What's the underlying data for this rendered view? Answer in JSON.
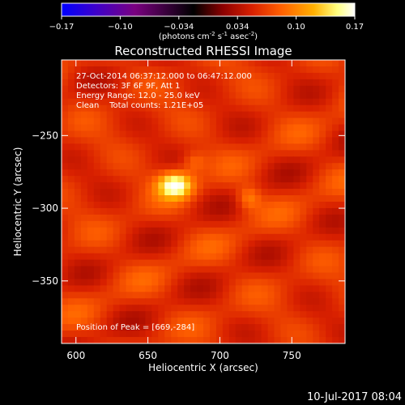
{
  "chart_data": {
    "type": "heatmap",
    "title": "Reconstructed RHESSI Image",
    "xlabel": "Heliocentric X (arcsec)",
    "ylabel": "Heliocentric Y (arcsec)",
    "xlim": [
      590,
      787
    ],
    "ylim": [
      -393,
      -198
    ],
    "xticks": [
      600,
      650,
      700,
      750
    ],
    "yticks": [
      -250,
      -300,
      -350
    ],
    "colorbar": {
      "range": [
        -0.17,
        0.17
      ],
      "tick_labels": [
        "-0.17",
        "-0.10",
        "-0.034",
        "0.034",
        "0.10",
        "0.17"
      ],
      "label": "(photons cm",
      "label_exp1": "-2",
      "label_mid": " s",
      "label_exp2": "-1",
      "label_mid2": " asec",
      "label_exp3": "-2",
      "label_end": ")"
    },
    "annotations": [
      "27-Oct-2014 06:37:12.000 to 06:47:12.000",
      "Detectors: 3F 6F 9F, Att 1",
      "Energy Range: 12.0 - 25.0 keV",
      "Clean    Total counts: 1.21E+05"
    ],
    "peak_label": "Position of Peak = [669,-284]",
    "sources": [
      {
        "x": 669,
        "y": -284,
        "peak": 0.17
      },
      {
        "x": 720,
        "y": -293,
        "peak": 0.12
      }
    ],
    "background_level": 0.06,
    "timestamp": "10-Jul-2017 08:04"
  },
  "colors": {
    "background": "#000000",
    "colormap": [
      "#0000ff",
      "#3f00c8",
      "#7a0080",
      "#000000",
      "#8b0000",
      "#d82000",
      "#ff6000",
      "#ffb000",
      "#ffff80",
      "#ffffff"
    ]
  }
}
